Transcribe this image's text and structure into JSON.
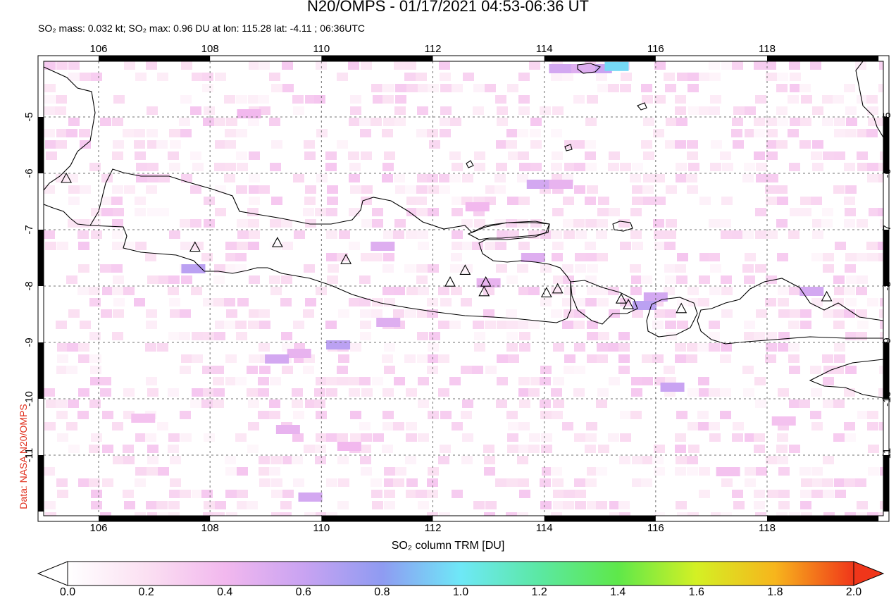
{
  "header": {
    "title": "N20/OMPS - 01/17/2021 04:53-06:36 UT",
    "subtitle": "SO₂ mass: 0.032 kt; SO₂ max: 0.96 DU at lon: 115.28 lat: -4.11 ; 06:36UTC"
  },
  "credit": "Data: NASA N20/OMPS",
  "map": {
    "lon_ticks": [
      "106",
      "108",
      "110",
      "112",
      "114",
      "116",
      "118"
    ],
    "lat_ticks": [
      "-5",
      "-6",
      "-7",
      "-8",
      "-9",
      "-10",
      "-11"
    ],
    "lon_range": [
      105.0,
      120.0
    ],
    "lat_range": [
      -12.0,
      -4.0
    ],
    "grid": "dashed",
    "volcano_marker": "triangle-icon",
    "volcanoes": [
      {
        "lon": 105.42,
        "lat": -6.1
      },
      {
        "lon": 107.73,
        "lat": -7.32
      },
      {
        "lon": 109.21,
        "lat": -7.24
      },
      {
        "lon": 110.44,
        "lat": -7.54
      },
      {
        "lon": 112.31,
        "lat": -7.94
      },
      {
        "lon": 112.58,
        "lat": -7.73
      },
      {
        "lon": 112.95,
        "lat": -7.94
      },
      {
        "lon": 112.92,
        "lat": -8.11
      },
      {
        "lon": 114.04,
        "lat": -8.13
      },
      {
        "lon": 114.24,
        "lat": -8.06
      },
      {
        "lon": 115.38,
        "lat": -8.24
      },
      {
        "lon": 115.51,
        "lat": -8.34
      },
      {
        "lon": 116.46,
        "lat": -8.41
      },
      {
        "lon": 119.07,
        "lat": -8.2
      }
    ]
  },
  "colorbar": {
    "title": "SO₂ column TRM [DU]",
    "labels": [
      "0.0",
      "0.2",
      "0.4",
      "0.6",
      "0.8",
      "1.0",
      "1.2",
      "1.4",
      "1.6",
      "1.8",
      "2.0"
    ],
    "range": [
      0.0,
      2.0
    ],
    "colors": [
      "#ffffff",
      "#fbe0f2",
      "#f2b8ee",
      "#c9a3f2",
      "#8f9bf2",
      "#6ee8f7",
      "#5be8a3",
      "#5ee84a",
      "#d4f024",
      "#f7b51c",
      "#f0361a"
    ]
  },
  "so2_cells": [
    {
      "lon": 114.3,
      "lat": -4.15,
      "v": 0.55
    },
    {
      "lon": 115.0,
      "lat": -4.15,
      "v": 0.6
    },
    {
      "lon": 115.3,
      "lat": -4.11,
      "v": 0.96
    },
    {
      "lon": 114.7,
      "lat": -4.15,
      "v": 0.5
    },
    {
      "lon": 113.9,
      "lat": -6.2,
      "v": 0.55
    },
    {
      "lon": 114.3,
      "lat": -6.2,
      "v": 0.45
    },
    {
      "lon": 113.8,
      "lat": -7.5,
      "v": 0.5
    },
    {
      "lon": 116.0,
      "lat": -8.2,
      "v": 0.55
    },
    {
      "lon": 115.8,
      "lat": -8.35,
      "v": 0.65
    },
    {
      "lon": 111.2,
      "lat": -8.65,
      "v": 0.5
    },
    {
      "lon": 110.3,
      "lat": -9.05,
      "v": 0.65
    },
    {
      "lon": 111.1,
      "lat": -7.3,
      "v": 0.5
    },
    {
      "lon": 109.6,
      "lat": -9.2,
      "v": 0.45
    },
    {
      "lon": 109.2,
      "lat": -9.3,
      "v": 0.55
    },
    {
      "lon": 116.3,
      "lat": -9.8,
      "v": 0.6
    },
    {
      "lon": 118.8,
      "lat": -8.1,
      "v": 0.55
    },
    {
      "lon": 107.7,
      "lat": -7.7,
      "v": 0.65
    },
    {
      "lon": 113.0,
      "lat": -7.95,
      "v": 0.45
    },
    {
      "lon": 112.8,
      "lat": -6.6,
      "v": 0.4
    },
    {
      "lon": 109.4,
      "lat": -10.55,
      "v": 0.45
    },
    {
      "lon": 108.7,
      "lat": -4.95,
      "v": 0.4
    },
    {
      "lon": 110.5,
      "lat": -10.85,
      "v": 0.4
    },
    {
      "lon": 106.8,
      "lat": -10.35,
      "v": 0.35
    },
    {
      "lon": 109.8,
      "lat": -11.75,
      "v": 0.55
    },
    {
      "lon": 118.3,
      "lat": -10.4,
      "v": 0.35
    },
    {
      "lon": 117.3,
      "lat": -11.3,
      "v": 0.35
    }
  ]
}
